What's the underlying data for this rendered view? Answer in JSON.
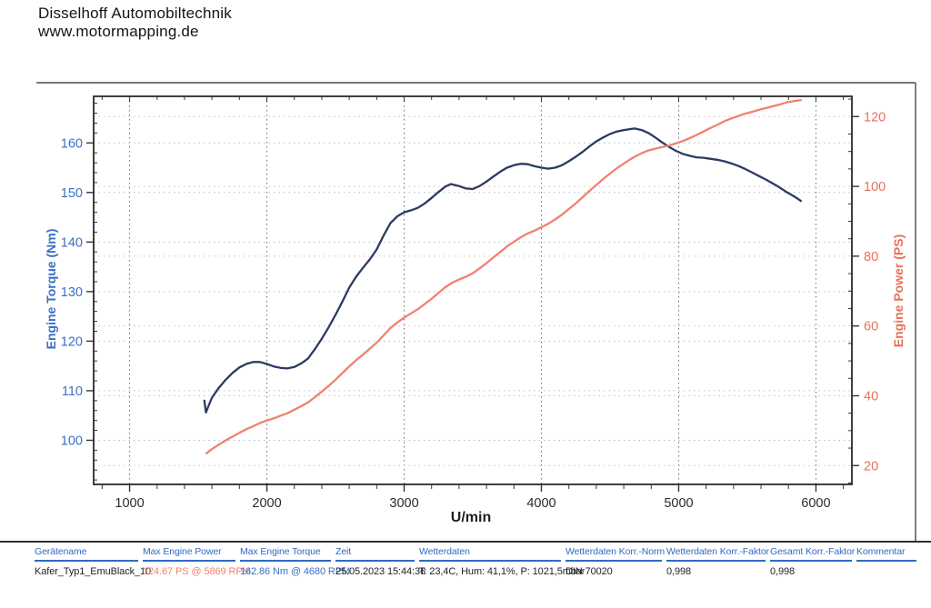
{
  "header": {
    "company": "Disselhoff Automobiltechnik",
    "website": "www.motormapping.de"
  },
  "chart_data": {
    "type": "line",
    "title": "",
    "xlabel": "U/min",
    "grid": {
      "vertical_color": "#6e6e6e",
      "torque_grid_color": "#9fc0e2",
      "power_grid_color": "#f2b5a5"
    },
    "x_axis": {
      "label": "U/min",
      "range": [
        738,
        6262
      ],
      "major_ticks": [
        1000,
        2000,
        3000,
        4000,
        5000,
        6000
      ],
      "minor_step": 200,
      "tick_color": "#2a2a2a"
    },
    "y_left": {
      "label": "Engine Torque (Nm)",
      "range": [
        91.1,
        169.4
      ],
      "major_ticks": [
        100,
        110,
        120,
        130,
        140,
        150,
        160
      ],
      "minor_step": 2,
      "color": "#3a6fc8"
    },
    "y_right": {
      "label": "Engine Power (PS)",
      "range": [
        14.6,
        125.8
      ],
      "major_ticks": [
        20,
        40,
        60,
        80,
        100,
        120
      ],
      "minor_step": 5,
      "color": "#e8715c"
    },
    "series": [
      {
        "name": "Engine Torque",
        "axis": "left",
        "unit": "Nm",
        "color": "#2c3a62",
        "max_label": "162.86 Nm @ 4680 RPM",
        "points": [
          [
            1545,
            108.0
          ],
          [
            1556,
            105.6
          ],
          [
            1570,
            106.6
          ],
          [
            1600,
            108.6
          ],
          [
            1650,
            110.6
          ],
          [
            1700,
            112.2
          ],
          [
            1750,
            113.6
          ],
          [
            1800,
            114.7
          ],
          [
            1850,
            115.4
          ],
          [
            1900,
            115.8
          ],
          [
            1950,
            115.8
          ],
          [
            2000,
            115.4
          ],
          [
            2050,
            114.9
          ],
          [
            2100,
            114.6
          ],
          [
            2150,
            114.5
          ],
          [
            2200,
            114.8
          ],
          [
            2250,
            115.5
          ],
          [
            2300,
            116.5
          ],
          [
            2350,
            118.4
          ],
          [
            2400,
            120.5
          ],
          [
            2450,
            122.8
          ],
          [
            2500,
            125.3
          ],
          [
            2550,
            128.0
          ],
          [
            2600,
            130.8
          ],
          [
            2650,
            133.0
          ],
          [
            2700,
            134.8
          ],
          [
            2750,
            136.5
          ],
          [
            2800,
            138.5
          ],
          [
            2850,
            141.3
          ],
          [
            2900,
            143.8
          ],
          [
            2950,
            145.2
          ],
          [
            3000,
            146.0
          ],
          [
            3050,
            146.4
          ],
          [
            3100,
            146.9
          ],
          [
            3150,
            147.8
          ],
          [
            3200,
            148.9
          ],
          [
            3250,
            150.1
          ],
          [
            3300,
            151.2
          ],
          [
            3340,
            151.7
          ],
          [
            3400,
            151.3
          ],
          [
            3450,
            150.8
          ],
          [
            3500,
            150.7
          ],
          [
            3550,
            151.3
          ],
          [
            3600,
            152.2
          ],
          [
            3650,
            153.2
          ],
          [
            3700,
            154.2
          ],
          [
            3750,
            155.0
          ],
          [
            3800,
            155.5
          ],
          [
            3850,
            155.8
          ],
          [
            3900,
            155.7
          ],
          [
            3950,
            155.3
          ],
          [
            4000,
            155.0
          ],
          [
            4050,
            154.8
          ],
          [
            4100,
            155.0
          ],
          [
            4150,
            155.5
          ],
          [
            4200,
            156.3
          ],
          [
            4250,
            157.2
          ],
          [
            4300,
            158.2
          ],
          [
            4350,
            159.3
          ],
          [
            4400,
            160.3
          ],
          [
            4450,
            161.1
          ],
          [
            4500,
            161.8
          ],
          [
            4550,
            162.3
          ],
          [
            4600,
            162.6
          ],
          [
            4650,
            162.8
          ],
          [
            4680,
            162.9
          ],
          [
            4730,
            162.6
          ],
          [
            4780,
            162.0
          ],
          [
            4830,
            161.1
          ],
          [
            4880,
            160.1
          ],
          [
            4930,
            159.2
          ],
          [
            4980,
            158.4
          ],
          [
            5030,
            157.8
          ],
          [
            5080,
            157.4
          ],
          [
            5130,
            157.1
          ],
          [
            5180,
            157.0
          ],
          [
            5230,
            156.8
          ],
          [
            5280,
            156.6
          ],
          [
            5330,
            156.3
          ],
          [
            5380,
            155.9
          ],
          [
            5430,
            155.4
          ],
          [
            5480,
            154.8
          ],
          [
            5530,
            154.1
          ],
          [
            5580,
            153.4
          ],
          [
            5630,
            152.7
          ],
          [
            5680,
            151.9
          ],
          [
            5730,
            151.1
          ],
          [
            5780,
            150.2
          ],
          [
            5830,
            149.4
          ],
          [
            5870,
            148.7
          ],
          [
            5890,
            148.3
          ]
        ]
      },
      {
        "name": "Engine Power",
        "axis": "right",
        "unit": "PS",
        "color": "#ef8270",
        "max_label": "124.67 PS @ 5869 RPM",
        "points": [
          [
            1560,
            23.5
          ],
          [
            1600,
            24.7
          ],
          [
            1650,
            26.0
          ],
          [
            1700,
            27.2
          ],
          [
            1750,
            28.3
          ],
          [
            1800,
            29.4
          ],
          [
            1850,
            30.4
          ],
          [
            1900,
            31.3
          ],
          [
            1950,
            32.2
          ],
          [
            2000,
            32.9
          ],
          [
            2050,
            33.5
          ],
          [
            2100,
            34.3
          ],
          [
            2150,
            35.0
          ],
          [
            2200,
            36.0
          ],
          [
            2250,
            37.0
          ],
          [
            2300,
            38.1
          ],
          [
            2350,
            39.6
          ],
          [
            2400,
            41.2
          ],
          [
            2450,
            42.8
          ],
          [
            2500,
            44.6
          ],
          [
            2550,
            46.5
          ],
          [
            2600,
            48.4
          ],
          [
            2650,
            50.2
          ],
          [
            2700,
            51.8
          ],
          [
            2750,
            53.5
          ],
          [
            2800,
            55.2
          ],
          [
            2850,
            57.3
          ],
          [
            2900,
            59.4
          ],
          [
            2950,
            61.0
          ],
          [
            3000,
            62.4
          ],
          [
            3050,
            63.6
          ],
          [
            3100,
            64.8
          ],
          [
            3150,
            66.3
          ],
          [
            3200,
            67.8
          ],
          [
            3250,
            69.5
          ],
          [
            3300,
            71.1
          ],
          [
            3350,
            72.4
          ],
          [
            3400,
            73.3
          ],
          [
            3450,
            74.1
          ],
          [
            3500,
            75.1
          ],
          [
            3550,
            76.5
          ],
          [
            3600,
            78.0
          ],
          [
            3650,
            79.6
          ],
          [
            3700,
            81.2
          ],
          [
            3750,
            82.8
          ],
          [
            3800,
            84.1
          ],
          [
            3850,
            85.4
          ],
          [
            3900,
            86.5
          ],
          [
            3950,
            87.3
          ],
          [
            4000,
            88.3
          ],
          [
            4050,
            89.3
          ],
          [
            4100,
            90.5
          ],
          [
            4150,
            91.9
          ],
          [
            4200,
            93.5
          ],
          [
            4250,
            95.1
          ],
          [
            4300,
            96.9
          ],
          [
            4350,
            98.7
          ],
          [
            4400,
            100.4
          ],
          [
            4450,
            102.1
          ],
          [
            4500,
            103.7
          ],
          [
            4550,
            105.2
          ],
          [
            4600,
            106.5
          ],
          [
            4650,
            107.8
          ],
          [
            4680,
            108.5
          ],
          [
            4730,
            109.5
          ],
          [
            4780,
            110.3
          ],
          [
            4830,
            110.8
          ],
          [
            4880,
            111.3
          ],
          [
            4930,
            111.7
          ],
          [
            4980,
            112.3
          ],
          [
            5030,
            113.0
          ],
          [
            5080,
            113.8
          ],
          [
            5130,
            114.7
          ],
          [
            5180,
            115.7
          ],
          [
            5230,
            116.7
          ],
          [
            5280,
            117.6
          ],
          [
            5330,
            118.6
          ],
          [
            5380,
            119.4
          ],
          [
            5430,
            120.1
          ],
          [
            5480,
            120.8
          ],
          [
            5530,
            121.3
          ],
          [
            5580,
            121.9
          ],
          [
            5630,
            122.4
          ],
          [
            5680,
            122.9
          ],
          [
            5730,
            123.4
          ],
          [
            5790,
            124.1
          ],
          [
            5850,
            124.5
          ],
          [
            5890,
            124.7
          ]
        ]
      }
    ]
  },
  "table": {
    "columns": [
      {
        "key": "geraetename",
        "label": "Gerätename",
        "value": "Kafer_Typ1_EmuBlack_10"
      },
      {
        "key": "max-engine-power",
        "label": "Max Engine Power",
        "value": "124.67 PS @ 5869 RPM",
        "value_color": "#ef8270"
      },
      {
        "key": "max-engine-torque",
        "label": "Max Engine Torque",
        "value": "162.86 Nm @ 4680 RPM",
        "value_color": "#3a6fc8"
      },
      {
        "key": "zeit",
        "label": "Zeit",
        "value": "25.05.2023 15:44:36"
      },
      {
        "key": "wetterdaten",
        "label": "Wetterdaten",
        "value": "T: 23,4C, Hum: 41,1%, P: 1021,5mbar"
      },
      {
        "key": "wetterdaten-korr-norm",
        "label": "Wetterdaten Korr.-Norm",
        "value": "DIN 70020"
      },
      {
        "key": "wetterdaten-korr-faktor",
        "label": "Wetterdaten Korr.-Faktor",
        "value": "0,998"
      },
      {
        "key": "gesamt-korr-faktor",
        "label": "Gesamt Korr.-Faktor",
        "value": "0,998"
      },
      {
        "key": "kommentar",
        "label": "Kommentar",
        "value": ""
      }
    ]
  }
}
